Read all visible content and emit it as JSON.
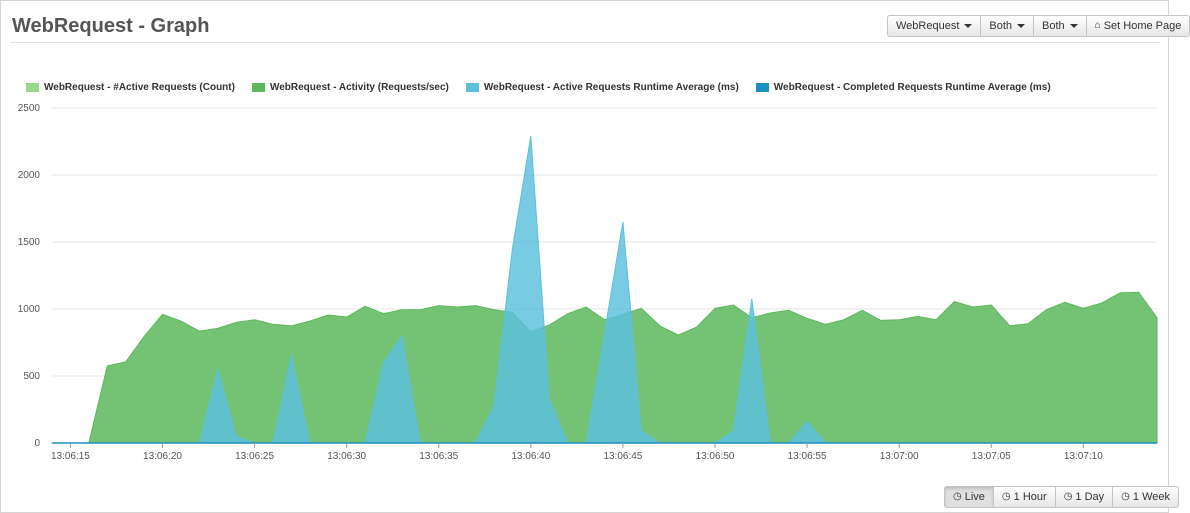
{
  "page": {
    "title": "WebRequest - Graph"
  },
  "toolbar": {
    "buttons": [
      {
        "label": "WebRequest",
        "has_caret": true
      },
      {
        "label": "Both",
        "has_caret": true
      },
      {
        "label": "Both",
        "has_caret": true
      },
      {
        "label": "Set Home Page",
        "icon": "home-icon"
      }
    ]
  },
  "range_buttons": [
    {
      "label": "Live",
      "icon": "clock-icon",
      "active": true
    },
    {
      "label": "1 Hour",
      "icon": "clock-icon",
      "active": false
    },
    {
      "label": "1 Day",
      "icon": "clock-icon",
      "active": false
    },
    {
      "label": "1 Week",
      "icon": "clock-icon",
      "active": false
    }
  ],
  "chart_data": {
    "type": "area",
    "ylim": [
      0,
      2500
    ],
    "yticks": [
      0,
      500,
      1000,
      1500,
      2000,
      2500
    ],
    "x_range": [
      "13:06:14",
      "13:07:14"
    ],
    "xtick_labels": [
      "13:06:15",
      "13:06:20",
      "13:06:25",
      "13:06:30",
      "13:06:35",
      "13:06:40",
      "13:06:45",
      "13:06:50",
      "13:06:55",
      "13:07:00",
      "13:07:05",
      "13:07:10"
    ],
    "grid": true,
    "legend_position": "top-left",
    "series": [
      {
        "name": "WebRequest - #Active Requests (Count)",
        "color": "#98d88a",
        "x": [
          "13:06:14",
          "13:07:14"
        ],
        "y": [
          0,
          0
        ]
      },
      {
        "name": "WebRequest - Activity (Requests/sec)",
        "color": "#5cb85c",
        "x": [
          "13:06:14",
          "13:06:15",
          "13:06:16",
          "13:06:17",
          "13:06:18",
          "13:06:19",
          "13:06:20",
          "13:06:21",
          "13:06:22",
          "13:06:23",
          "13:06:24",
          "13:06:25",
          "13:06:26",
          "13:06:27",
          "13:06:28",
          "13:06:29",
          "13:06:30",
          "13:06:31",
          "13:06:32",
          "13:06:33",
          "13:06:34",
          "13:06:35",
          "13:06:36",
          "13:06:37",
          "13:06:38",
          "13:06:39",
          "13:06:40",
          "13:06:41",
          "13:06:42",
          "13:06:43",
          "13:06:44",
          "13:06:45",
          "13:06:46",
          "13:06:47",
          "13:06:48",
          "13:06:49",
          "13:06:50",
          "13:06:51",
          "13:06:52",
          "13:06:53",
          "13:06:54",
          "13:06:55",
          "13:06:56",
          "13:06:57",
          "13:06:58",
          "13:06:59",
          "13:07:00",
          "13:07:01",
          "13:07:02",
          "13:07:03",
          "13:07:04",
          "13:07:05",
          "13:07:06",
          "13:07:07",
          "13:07:08",
          "13:07:09",
          "13:07:10",
          "13:07:11",
          "13:07:12",
          "13:07:13",
          "13:07:14"
        ],
        "y": [
          0,
          0,
          0,
          575,
          605,
          795,
          960,
          910,
          835,
          855,
          900,
          920,
          885,
          875,
          910,
          955,
          940,
          1020,
          965,
          995,
          995,
          1025,
          1015,
          1025,
          995,
          975,
          830,
          880,
          965,
          1015,
          920,
          960,
          1005,
          875,
          805,
          865,
          1005,
          1030,
          935,
          970,
          990,
          930,
          885,
          920,
          990,
          915,
          920,
          945,
          920,
          1055,
          1015,
          1030,
          875,
          890,
          995,
          1050,
          1005,
          1045,
          1120,
          1125,
          935
        ]
      },
      {
        "name": "WebRequest - Active Requests Runtime Average (ms)",
        "color": "#5bc0de",
        "x": [
          "13:06:14",
          "13:06:22",
          "13:06:23",
          "13:06:24",
          "13:06:25",
          "13:06:26",
          "13:06:27",
          "13:06:28",
          "13:06:29",
          "13:06:31",
          "13:06:32",
          "13:06:33",
          "13:06:34",
          "13:06:35",
          "13:06:37",
          "13:06:38",
          "13:06:39",
          "13:06:40",
          "13:06:41",
          "13:06:42",
          "13:06:43",
          "13:06:44",
          "13:06:45",
          "13:06:46",
          "13:06:47",
          "13:06:49",
          "13:06:50",
          "13:06:51",
          "13:06:52",
          "13:06:53",
          "13:06:54",
          "13:06:55",
          "13:06:56",
          "13:07:14"
        ],
        "y": [
          0,
          0,
          550,
          50,
          0,
          0,
          660,
          0,
          0,
          0,
          600,
          800,
          0,
          0,
          0,
          280,
          1450,
          2290,
          330,
          0,
          0,
          820,
          1650,
          90,
          0,
          0,
          0,
          90,
          1075,
          0,
          0,
          160,
          0,
          0
        ]
      },
      {
        "name": "WebRequest - Completed Requests Runtime Average (ms)",
        "color": "#1a8fc0",
        "x": [
          "13:06:14",
          "13:07:14"
        ],
        "y": [
          0,
          0
        ]
      }
    ]
  }
}
